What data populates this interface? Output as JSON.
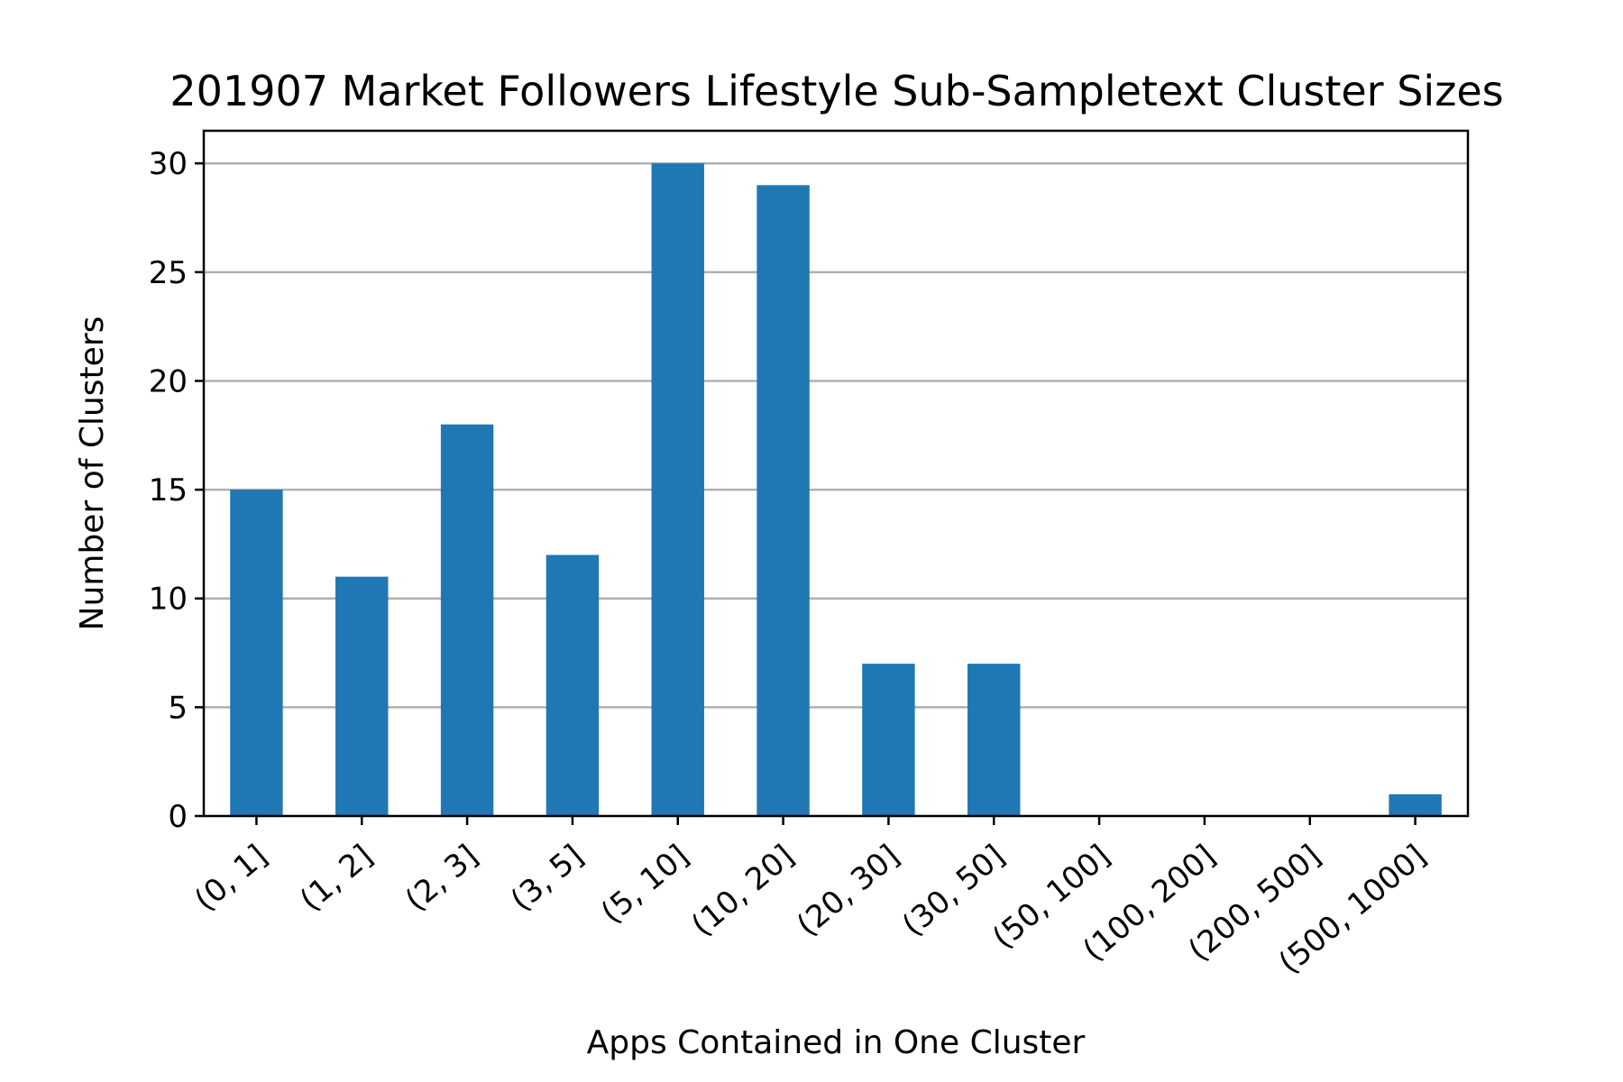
{
  "chart_data": {
    "type": "bar",
    "title": "201907 Market Followers Lifestyle Sub-Sampletext Cluster Sizes",
    "xlabel": "Apps Contained in One Cluster",
    "ylabel": "Number of Clusters",
    "categories": [
      "(0, 1]",
      "(1, 2]",
      "(2, 3]",
      "(3, 5]",
      "(5, 10]",
      "(10, 20]",
      "(20, 30]",
      "(30, 50]",
      "(50, 100]",
      "(100, 200]",
      "(200, 500]",
      "(500, 1000]"
    ],
    "values": [
      15,
      11,
      18,
      12,
      30,
      29,
      7,
      7,
      0,
      0,
      0,
      1
    ],
    "ylim": [
      0,
      31.5
    ],
    "yticks": [
      0,
      5,
      10,
      15,
      20,
      25,
      30
    ],
    "grid": "horizontal",
    "bar_color": "#1f77b4"
  }
}
